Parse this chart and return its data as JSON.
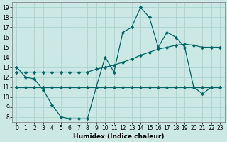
{
  "x": [
    0,
    1,
    2,
    3,
    4,
    5,
    6,
    7,
    8,
    9,
    10,
    11,
    12,
    13,
    14,
    15,
    16,
    17,
    18,
    19,
    20,
    21,
    22,
    23
  ],
  "line1": [
    13,
    12,
    11.8,
    10.7,
    9.2,
    8,
    7.8,
    7.8,
    7.8,
    11,
    14,
    12.5,
    16.5,
    17,
    19,
    18,
    15,
    16.5,
    16,
    15,
    11,
    10.3,
    11,
    11
  ],
  "line2": [
    11,
    11,
    11,
    11,
    11,
    11,
    11,
    11,
    11,
    11,
    11,
    11,
    11,
    11,
    11,
    11,
    11,
    11,
    11,
    11,
    11,
    11,
    11,
    11
  ],
  "line3": [
    12.5,
    12.5,
    12.5,
    12.5,
    12.5,
    12.5,
    12.5,
    12.5,
    12.5,
    12.8,
    13,
    13.2,
    13.5,
    13.8,
    14.2,
    14.5,
    14.8,
    15,
    15.2,
    15.3,
    15.2,
    15,
    15,
    15
  ],
  "bg_color": "#cce8e4",
  "grid_color": "#aad4ce",
  "line_color": "#006666",
  "xlabel": "Humidex (Indice chaleur)",
  "xlim": [
    -0.5,
    23.5
  ],
  "ylim": [
    7.5,
    19.5
  ],
  "yticks": [
    8,
    9,
    10,
    11,
    12,
    13,
    14,
    15,
    16,
    17,
    18,
    19
  ],
  "xticks": [
    0,
    1,
    2,
    3,
    4,
    5,
    6,
    7,
    8,
    9,
    10,
    11,
    12,
    13,
    14,
    15,
    16,
    17,
    18,
    19,
    20,
    21,
    22,
    23
  ],
  "xlabel_fontsize": 6.5,
  "tick_fontsize": 5.5
}
